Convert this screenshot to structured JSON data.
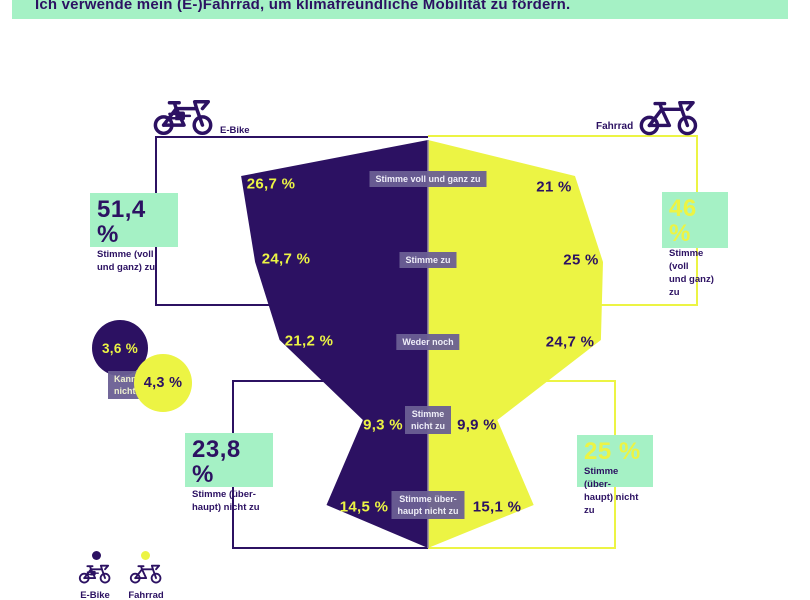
{
  "title": "Ich verwende mein (E-)Fahrrad, um klimafreundliche Mobilität zu fördern.",
  "colors": {
    "purple": "#2c1162",
    "yellow": "#ecf444",
    "mint": "#a5f1c5",
    "chip_background": "#6a5f94",
    "chip_text": "#efeef8"
  },
  "header": {
    "left_label": "E-Bike",
    "right_label": "Fahrrad"
  },
  "chart_data": {
    "type": "bar",
    "variant": "butterfly-funnel",
    "title": "Ich verwende mein (E-)Fahrrad, um klimafreundliche Mobilität zu fördern.",
    "categories": [
      "Stimme voll und ganz zu",
      "Stimme zu",
      "Weder noch",
      "Stimme nicht zu",
      "Stimme überhaupt nicht zu"
    ],
    "series": [
      {
        "name": "E-Bike",
        "color": "#2c1162",
        "values": [
          26.7,
          24.7,
          21.2,
          9.3,
          14.5
        ],
        "labels": [
          "26,7 %",
          "24,7 %",
          "21,2 %",
          "9,3 %",
          "14,5 %"
        ]
      },
      {
        "name": "Fahrrad",
        "color": "#ecf444",
        "values": [
          21,
          25,
          24.7,
          9.9,
          15.1
        ],
        "labels": [
          "21 %",
          "25 %",
          "24,7 %",
          "9,9 %",
          "15,1 %"
        ]
      }
    ],
    "cannot_say": {
      "label_line1": "Kann ich",
      "label_line2": "nicht sagen.",
      "ebike": "3,6 %",
      "fahrrad": "4,3 %"
    },
    "summaries": {
      "ebike_agree": {
        "value": "51,4 %",
        "label_line1": "Stimme (voll",
        "label_line2": "und ganz) zu"
      },
      "fahrrad_agree": {
        "value": "46 %",
        "label_line1": "Stimme (voll",
        "label_line2": "und ganz) zu"
      },
      "ebike_disagree": {
        "value": "23,8 %",
        "label_line1": "Stimme (über-",
        "label_line2": "haupt) nicht zu"
      },
      "fahrrad_disagree": {
        "value": "25 %",
        "label_line1": "Stimme (über-",
        "label_line2": "haupt) nicht zu"
      }
    }
  },
  "band_labels": {
    "b0": "Stimme voll und ganz zu",
    "b1": "Stimme zu",
    "b2": "Weder noch",
    "b3_line1": "Stimme",
    "b3_line2": "nicht zu",
    "b4_line1": "Stimme über-",
    "b4_line2": "haupt nicht zu"
  },
  "legend": {
    "ebike": "E-Bike",
    "fahrrad": "Fahrrad"
  }
}
